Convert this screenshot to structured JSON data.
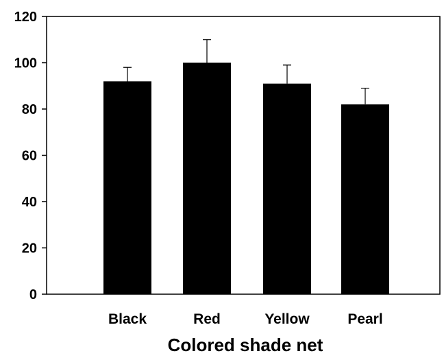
{
  "chart_data": {
    "type": "bar",
    "categories": [
      "Black",
      "Red",
      "Yellow",
      "Pearl"
    ],
    "values": [
      92,
      100,
      91,
      82
    ],
    "error_upper": [
      6,
      10,
      8,
      7
    ],
    "title": "",
    "xlabel": "Colored shade net",
    "ylabel": "",
    "ylim": [
      0,
      120
    ],
    "yticks": [
      0,
      20,
      40,
      60,
      80,
      100,
      120
    ],
    "grid": false,
    "bar_color": "#000000"
  }
}
